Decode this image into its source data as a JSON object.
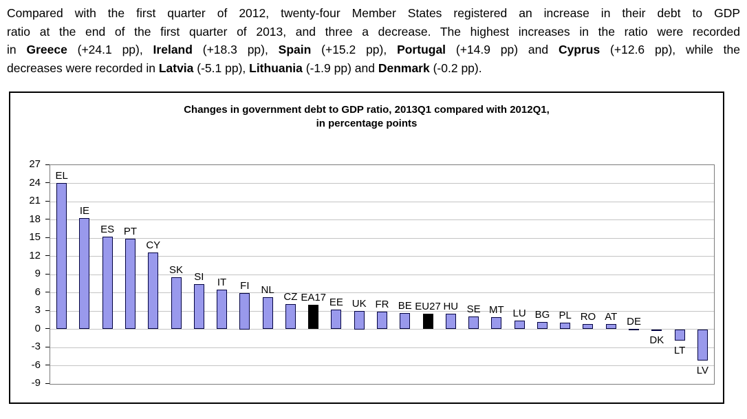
{
  "intro": {
    "lines": [
      {
        "segments": [
          {
            "text": "Compared with the first quarter of 2012, twenty-four Member States registered an increase in their debt to GDP",
            "bold": false
          }
        ]
      },
      {
        "segments": [
          {
            "text": "ratio at the end of the first quarter of 2013, and three a decrease. The highest increases in the ratio were recorded",
            "bold": false
          }
        ]
      },
      {
        "segments": [
          {
            "text": "in ",
            "bold": false
          },
          {
            "text": "Greece",
            "bold": true
          },
          {
            "text": " (+24.1 pp), ",
            "bold": false
          },
          {
            "text": "Ireland",
            "bold": true
          },
          {
            "text": " (+18.3 pp), ",
            "bold": false
          },
          {
            "text": "Spain",
            "bold": true
          },
          {
            "text": " (+15.2 pp), ",
            "bold": false
          },
          {
            "text": "Portugal",
            "bold": true
          },
          {
            "text": " (+14.9 pp) and ",
            "bold": false
          },
          {
            "text": "Cyprus",
            "bold": true
          },
          {
            "text": " (+12.6 pp), while the",
            "bold": false
          }
        ]
      },
      {
        "segments": [
          {
            "text": "decreases were recorded in ",
            "bold": false
          },
          {
            "text": "Latvia",
            "bold": true
          },
          {
            "text": " (-5.1 pp), ",
            "bold": false
          },
          {
            "text": "Lithuania",
            "bold": true
          },
          {
            "text": " (-1.9 pp) and ",
            "bold": false
          },
          {
            "text": "Denmark",
            "bold": true
          },
          {
            "text": " (-0.2 pp).",
            "bold": false
          }
        ]
      }
    ]
  },
  "chart_data": {
    "type": "bar",
    "title_lines": [
      "Changes in government debt to GDP ratio, 2013Q1 compared with 2012Q1,",
      "in percentage points"
    ],
    "categories": [
      "EL",
      "IE",
      "ES",
      "PT",
      "CY",
      "SK",
      "SI",
      "IT",
      "FI",
      "NL",
      "CZ",
      "EA17",
      "EE",
      "UK",
      "FR",
      "BE",
      "EU27",
      "HU",
      "SE",
      "MT",
      "LU",
      "BG",
      "PL",
      "RO",
      "AT",
      "DE",
      "DK",
      "LT",
      "LV"
    ],
    "values": [
      24.1,
      18.3,
      15.2,
      14.9,
      12.6,
      8.5,
      7.4,
      6.5,
      6.0,
      5.3,
      4.1,
      4.0,
      3.2,
      3.0,
      2.9,
      2.7,
      2.6,
      2.5,
      2.1,
      2.0,
      1.4,
      1.2,
      1.1,
      0.9,
      0.8,
      0.1,
      -0.2,
      -1.9,
      -5.1
    ],
    "highlight_categories": [
      "EA17",
      "EU27"
    ],
    "ylim": [
      -9,
      27
    ],
    "ytick_step": 3,
    "yticks": [
      27,
      24,
      21,
      18,
      15,
      12,
      9,
      6,
      3,
      0,
      -3,
      -6,
      -9
    ],
    "grid": true,
    "legend": "none",
    "xlabel": "",
    "ylabel": "",
    "colors": {
      "bar": "#9999EC",
      "bar_border": "#000040",
      "highlight": "#000000",
      "gridline": "#C3C3C3",
      "plot_border": "#7A7A7A",
      "box_border": "#000000",
      "text": "#000000"
    }
  }
}
